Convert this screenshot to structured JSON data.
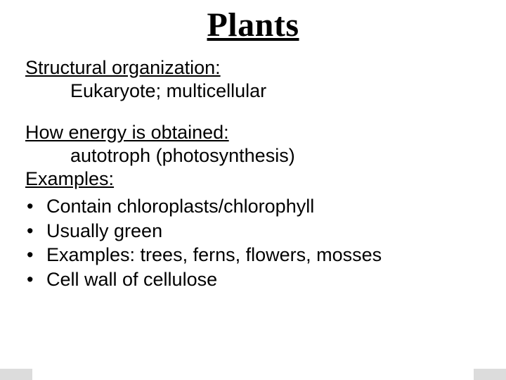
{
  "slide": {
    "title": "Plants",
    "title_fontsize": 48,
    "title_font": "Times New Roman",
    "body_fontsize": 27,
    "body_font": "Arial",
    "text_color": "#000000",
    "background_color": "#ffffff",
    "corner_tab_color": "#dcdcdc",
    "sections": [
      {
        "heading": "Structural organization:",
        "body": "Eukaryote; multicellular"
      },
      {
        "heading": "How energy is obtained:",
        "body": "autotroph (photosynthesis)"
      }
    ],
    "examples_heading": "Examples:",
    "bullets": [
      "Contain chloroplasts/chlorophyll",
      "Usually green",
      "Examples: trees, ferns, flowers, mosses",
      "Cell wall of cellulose"
    ]
  }
}
